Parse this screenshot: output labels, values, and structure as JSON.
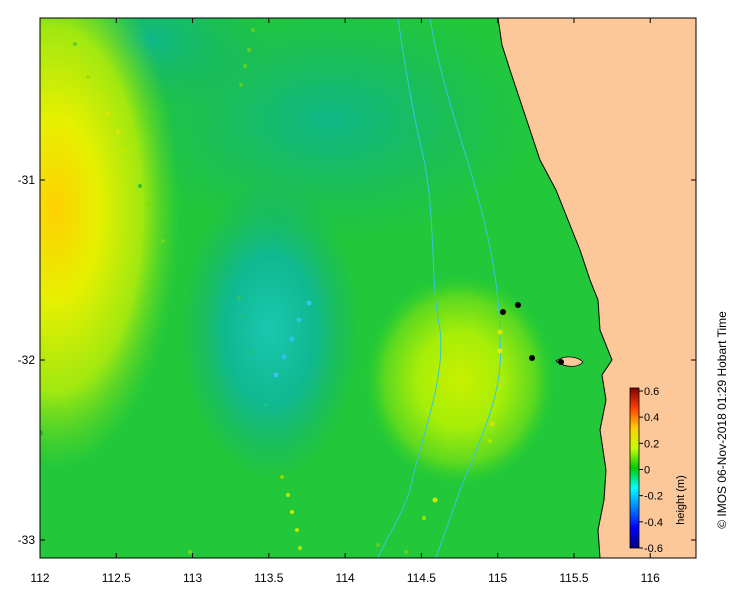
{
  "map": {
    "x_ticks": [
      "112",
      "112.5",
      "113",
      "113.5",
      "114",
      "114.5",
      "115",
      "115.5",
      "116"
    ],
    "x_tick_values": [
      112,
      112.5,
      113,
      113.5,
      114,
      114.5,
      115,
      115.5,
      116
    ],
    "y_ticks": [
      "-31",
      "-32",
      "-33"
    ],
    "y_tick_values": [
      -31,
      -32,
      -33
    ],
    "lon_range": [
      112,
      116.3
    ],
    "lat_range": [
      -33.1,
      -30.1
    ],
    "land_color": "#fcc89a",
    "bathymetry_color": "#35c8d8"
  },
  "colorbar": {
    "title": "height (m)",
    "ticks": [
      "0.6",
      "0.4",
      "0.2",
      "0",
      "-0.2",
      "-0.4",
      "-0.6"
    ],
    "range": [
      -0.6,
      0.6
    ]
  },
  "credit": "© IMOS 06-Nov-2018 01:29 Hobart Time"
}
